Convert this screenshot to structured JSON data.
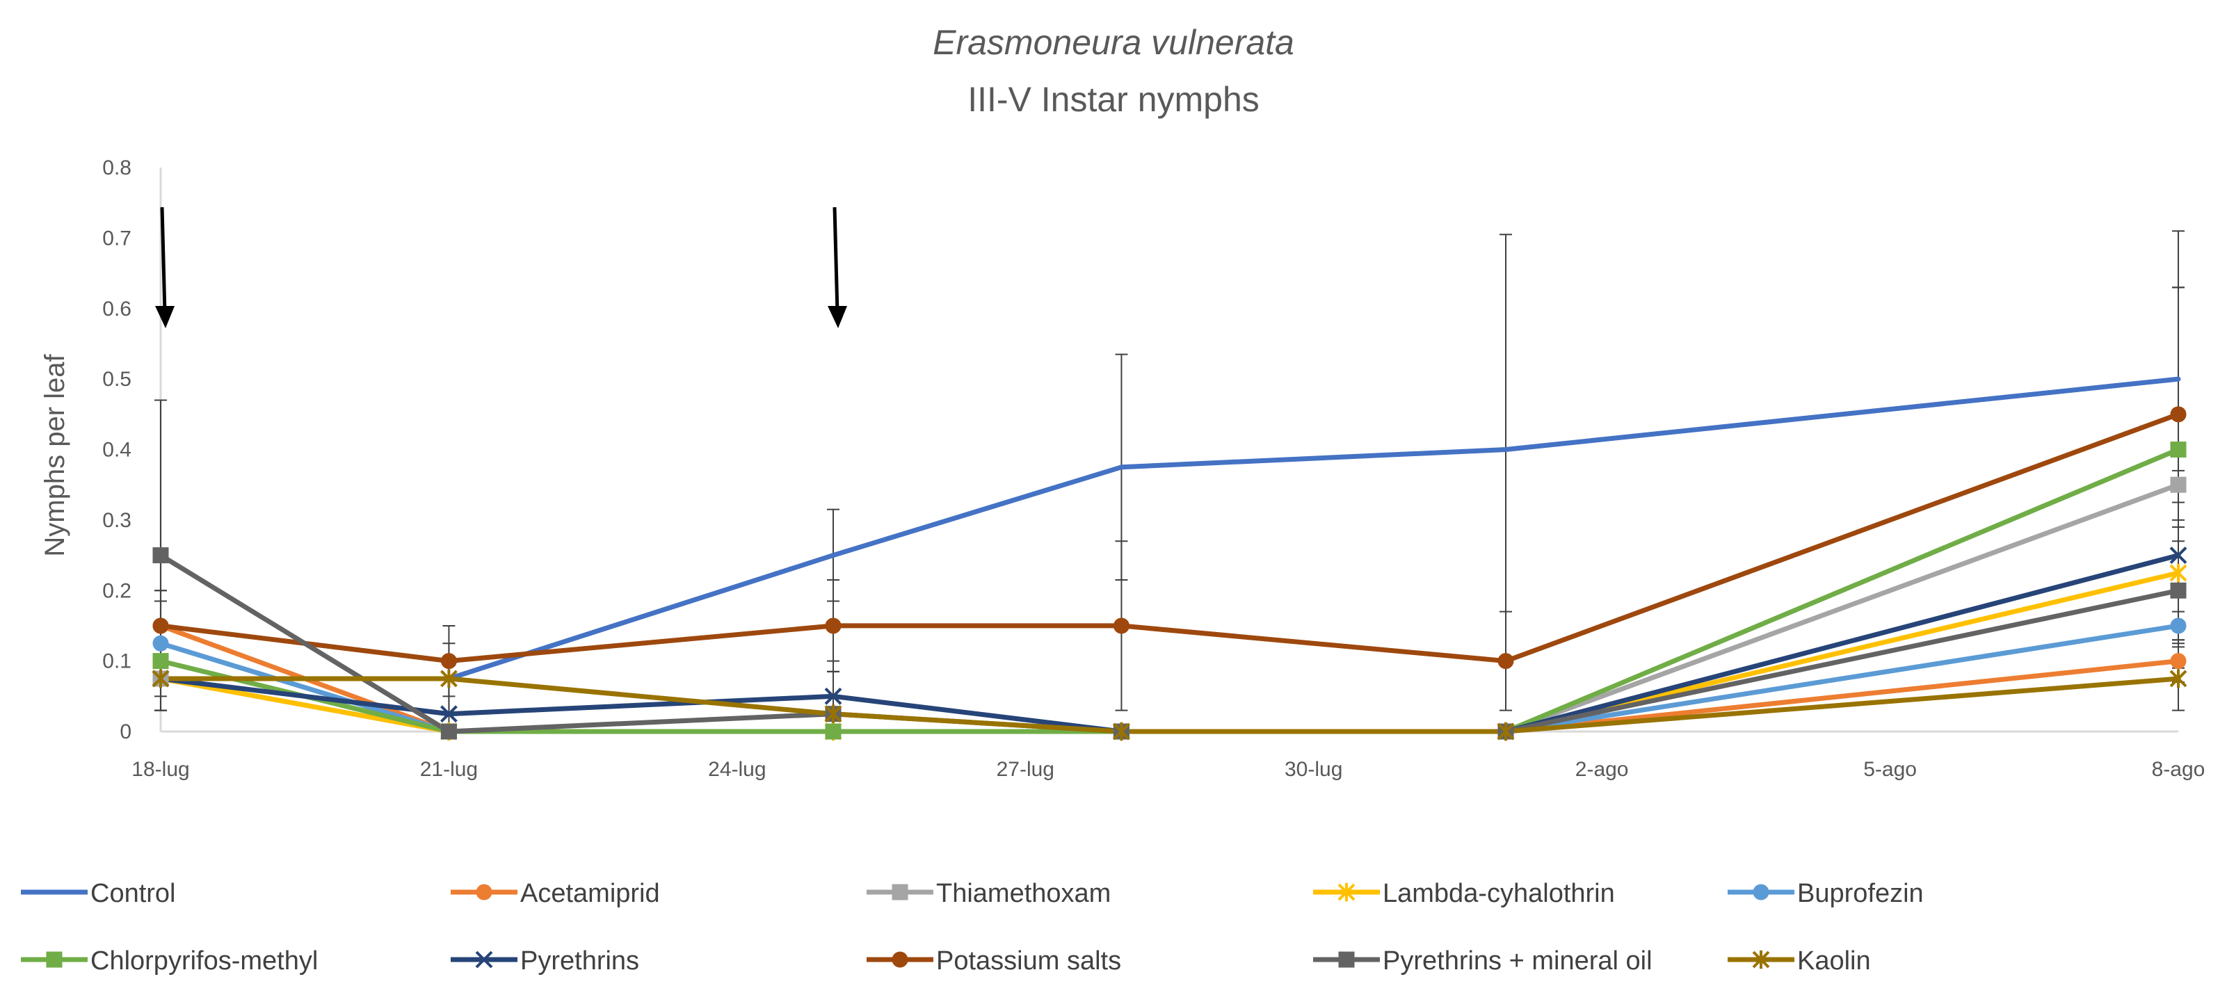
{
  "chart_data": {
    "type": "line",
    "title": "Erasmoneura vulnerata",
    "subtitle": "III-V Instar nymphs",
    "xlabel": "",
    "ylabel": "Nymphs per leaf",
    "ylim": [
      0,
      0.8
    ],
    "yticks": [
      "0",
      "0.1",
      "0.2",
      "0.3",
      "0.4",
      "0.5",
      "0.6",
      "0.7",
      "0.8"
    ],
    "xlim": [
      0,
      21
    ],
    "xticks": [
      {
        "label": "18-lug",
        "pos": 0
      },
      {
        "label": "21-lug",
        "pos": 3
      },
      {
        "label": "24-lug",
        "pos": 6
      },
      {
        "label": "27-lug",
        "pos": 9
      },
      {
        "label": "30-lug",
        "pos": 12
      },
      {
        "label": "2-ago",
        "pos": 15
      },
      {
        "label": "5-ago",
        "pos": 18
      },
      {
        "label": "8-ago",
        "pos": 21
      }
    ],
    "x": [
      0,
      3,
      7,
      10,
      14,
      21
    ],
    "arrows_at": [
      0,
      7
    ],
    "grid": false,
    "legend_position": "bottom",
    "series": [
      {
        "name": "Control",
        "color": "#4472C4",
        "marker": "none",
        "values": [
          0.075,
          0.075,
          0.25,
          0.375,
          0.4,
          0.5
        ],
        "errors": [
          0.0,
          0.0,
          0.065,
          0.16,
          0.305,
          0.21
        ]
      },
      {
        "name": "Acetamiprid",
        "color": "#ED7D31",
        "marker": "circle",
        "values": [
          0.15,
          0,
          0,
          0,
          0,
          0.1
        ],
        "errors": [
          0.05,
          0,
          0,
          0,
          0,
          0.03
        ]
      },
      {
        "name": "Thiamethoxam",
        "color": "#A5A5A5",
        "marker": "square",
        "values": [
          0.075,
          0,
          0,
          0,
          0,
          0.35
        ],
        "errors": [
          0.045,
          0,
          0,
          0,
          0,
          0.28
        ]
      },
      {
        "name": "Lambda-cyhalothrin",
        "color": "#FFC000",
        "marker": "star",
        "values": [
          0.075,
          0,
          0,
          0,
          0,
          0.225
        ],
        "errors": [
          0.045,
          0,
          0,
          0,
          0,
          0.1
        ]
      },
      {
        "name": "Buprofezin",
        "color": "#5B9BD5",
        "marker": "circle",
        "values": [
          0.125,
          0,
          0,
          0,
          0,
          0.15
        ],
        "errors": [
          0.06,
          0,
          0,
          0,
          0,
          0.06
        ]
      },
      {
        "name": "Chlorpyrifos-methyl",
        "color": "#70AD47",
        "marker": "square",
        "values": [
          0.1,
          0,
          0,
          0,
          0,
          0.4
        ],
        "errors": [
          0.05,
          0,
          0,
          0,
          0,
          0.23
        ]
      },
      {
        "name": "Pyrethrins",
        "color": "#264478",
        "marker": "x",
        "values": [
          0.075,
          0.025,
          0.05,
          0,
          0,
          0.25
        ],
        "errors": [
          0.045,
          0.05,
          0.05,
          0,
          0,
          0.12
        ]
      },
      {
        "name": "Potassium salts",
        "color": "#9E480E",
        "marker": "circle",
        "values": [
          0.15,
          0.1,
          0.15,
          0.15,
          0.1,
          0.45
        ],
        "errors": [
          0.05,
          0.05,
          0.065,
          0.12,
          0.07,
          0.18
        ]
      },
      {
        "name": "Pyrethrins + mineral oil",
        "color": "#636363",
        "marker": "square",
        "values": [
          0.25,
          0,
          0.025,
          0,
          0,
          0.2
        ],
        "errors": [
          0.22,
          0,
          0.06,
          0,
          0,
          0.1
        ]
      },
      {
        "name": "Kaolin",
        "color": "#997300",
        "marker": "star",
        "values": [
          0.075,
          0.075,
          0.025,
          0,
          0,
          0.075
        ],
        "errors": [
          0.045,
          0.05,
          0.06,
          0,
          0,
          0.045
        ]
      }
    ]
  }
}
